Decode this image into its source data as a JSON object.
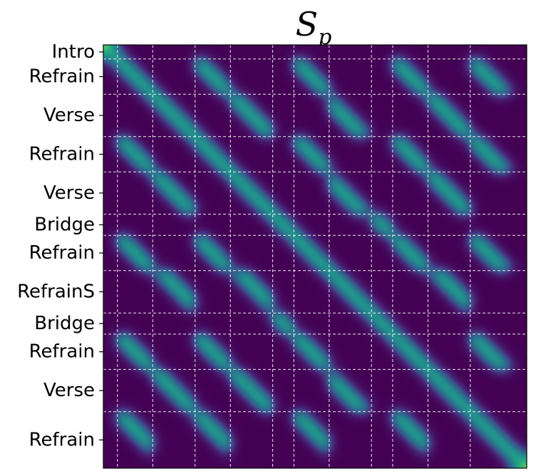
{
  "chart_data": {
    "type": "heatmap",
    "title": "S",
    "title_subscript": "p",
    "colormap": "viridis",
    "n_beats": 60,
    "grid": {
      "lines": "dashed",
      "color": "#ffffff"
    },
    "segments": [
      {
        "label": "Intro",
        "start": 0,
        "end": 2,
        "block": 0,
        "off": 0
      },
      {
        "label": "Refrain",
        "start": 2,
        "end": 7,
        "block": 1,
        "off": 0
      },
      {
        "label": "Verse",
        "start": 7,
        "end": 13,
        "block": 2,
        "off": 0
      },
      {
        "label": "Refrain",
        "start": 13,
        "end": 18,
        "block": 1,
        "off": 0
      },
      {
        "label": "Verse",
        "start": 18,
        "end": 24,
        "block": 2,
        "off": 0
      },
      {
        "label": "Bridge",
        "start": 24,
        "end": 27,
        "block": 3,
        "off": 0
      },
      {
        "label": "Refrain",
        "start": 27,
        "end": 32,
        "block": 1,
        "off": 0
      },
      {
        "label": "RefrainS",
        "start": 32,
        "end": 38,
        "block": 2,
        "off": 1
      },
      {
        "label": "Bridge",
        "start": 38,
        "end": 41,
        "block": 3,
        "off": 0
      },
      {
        "label": "Refrain",
        "start": 41,
        "end": 46,
        "block": 1,
        "off": 0
      },
      {
        "label": "Verse",
        "start": 46,
        "end": 52,
        "block": 2,
        "off": 0
      },
      {
        "label": "Refrain",
        "start": 52,
        "end": 60,
        "block": 1,
        "off": 0
      }
    ],
    "xlim": [
      0,
      60
    ],
    "ylim": [
      60,
      0
    ],
    "value_range": [
      0,
      1
    ]
  }
}
